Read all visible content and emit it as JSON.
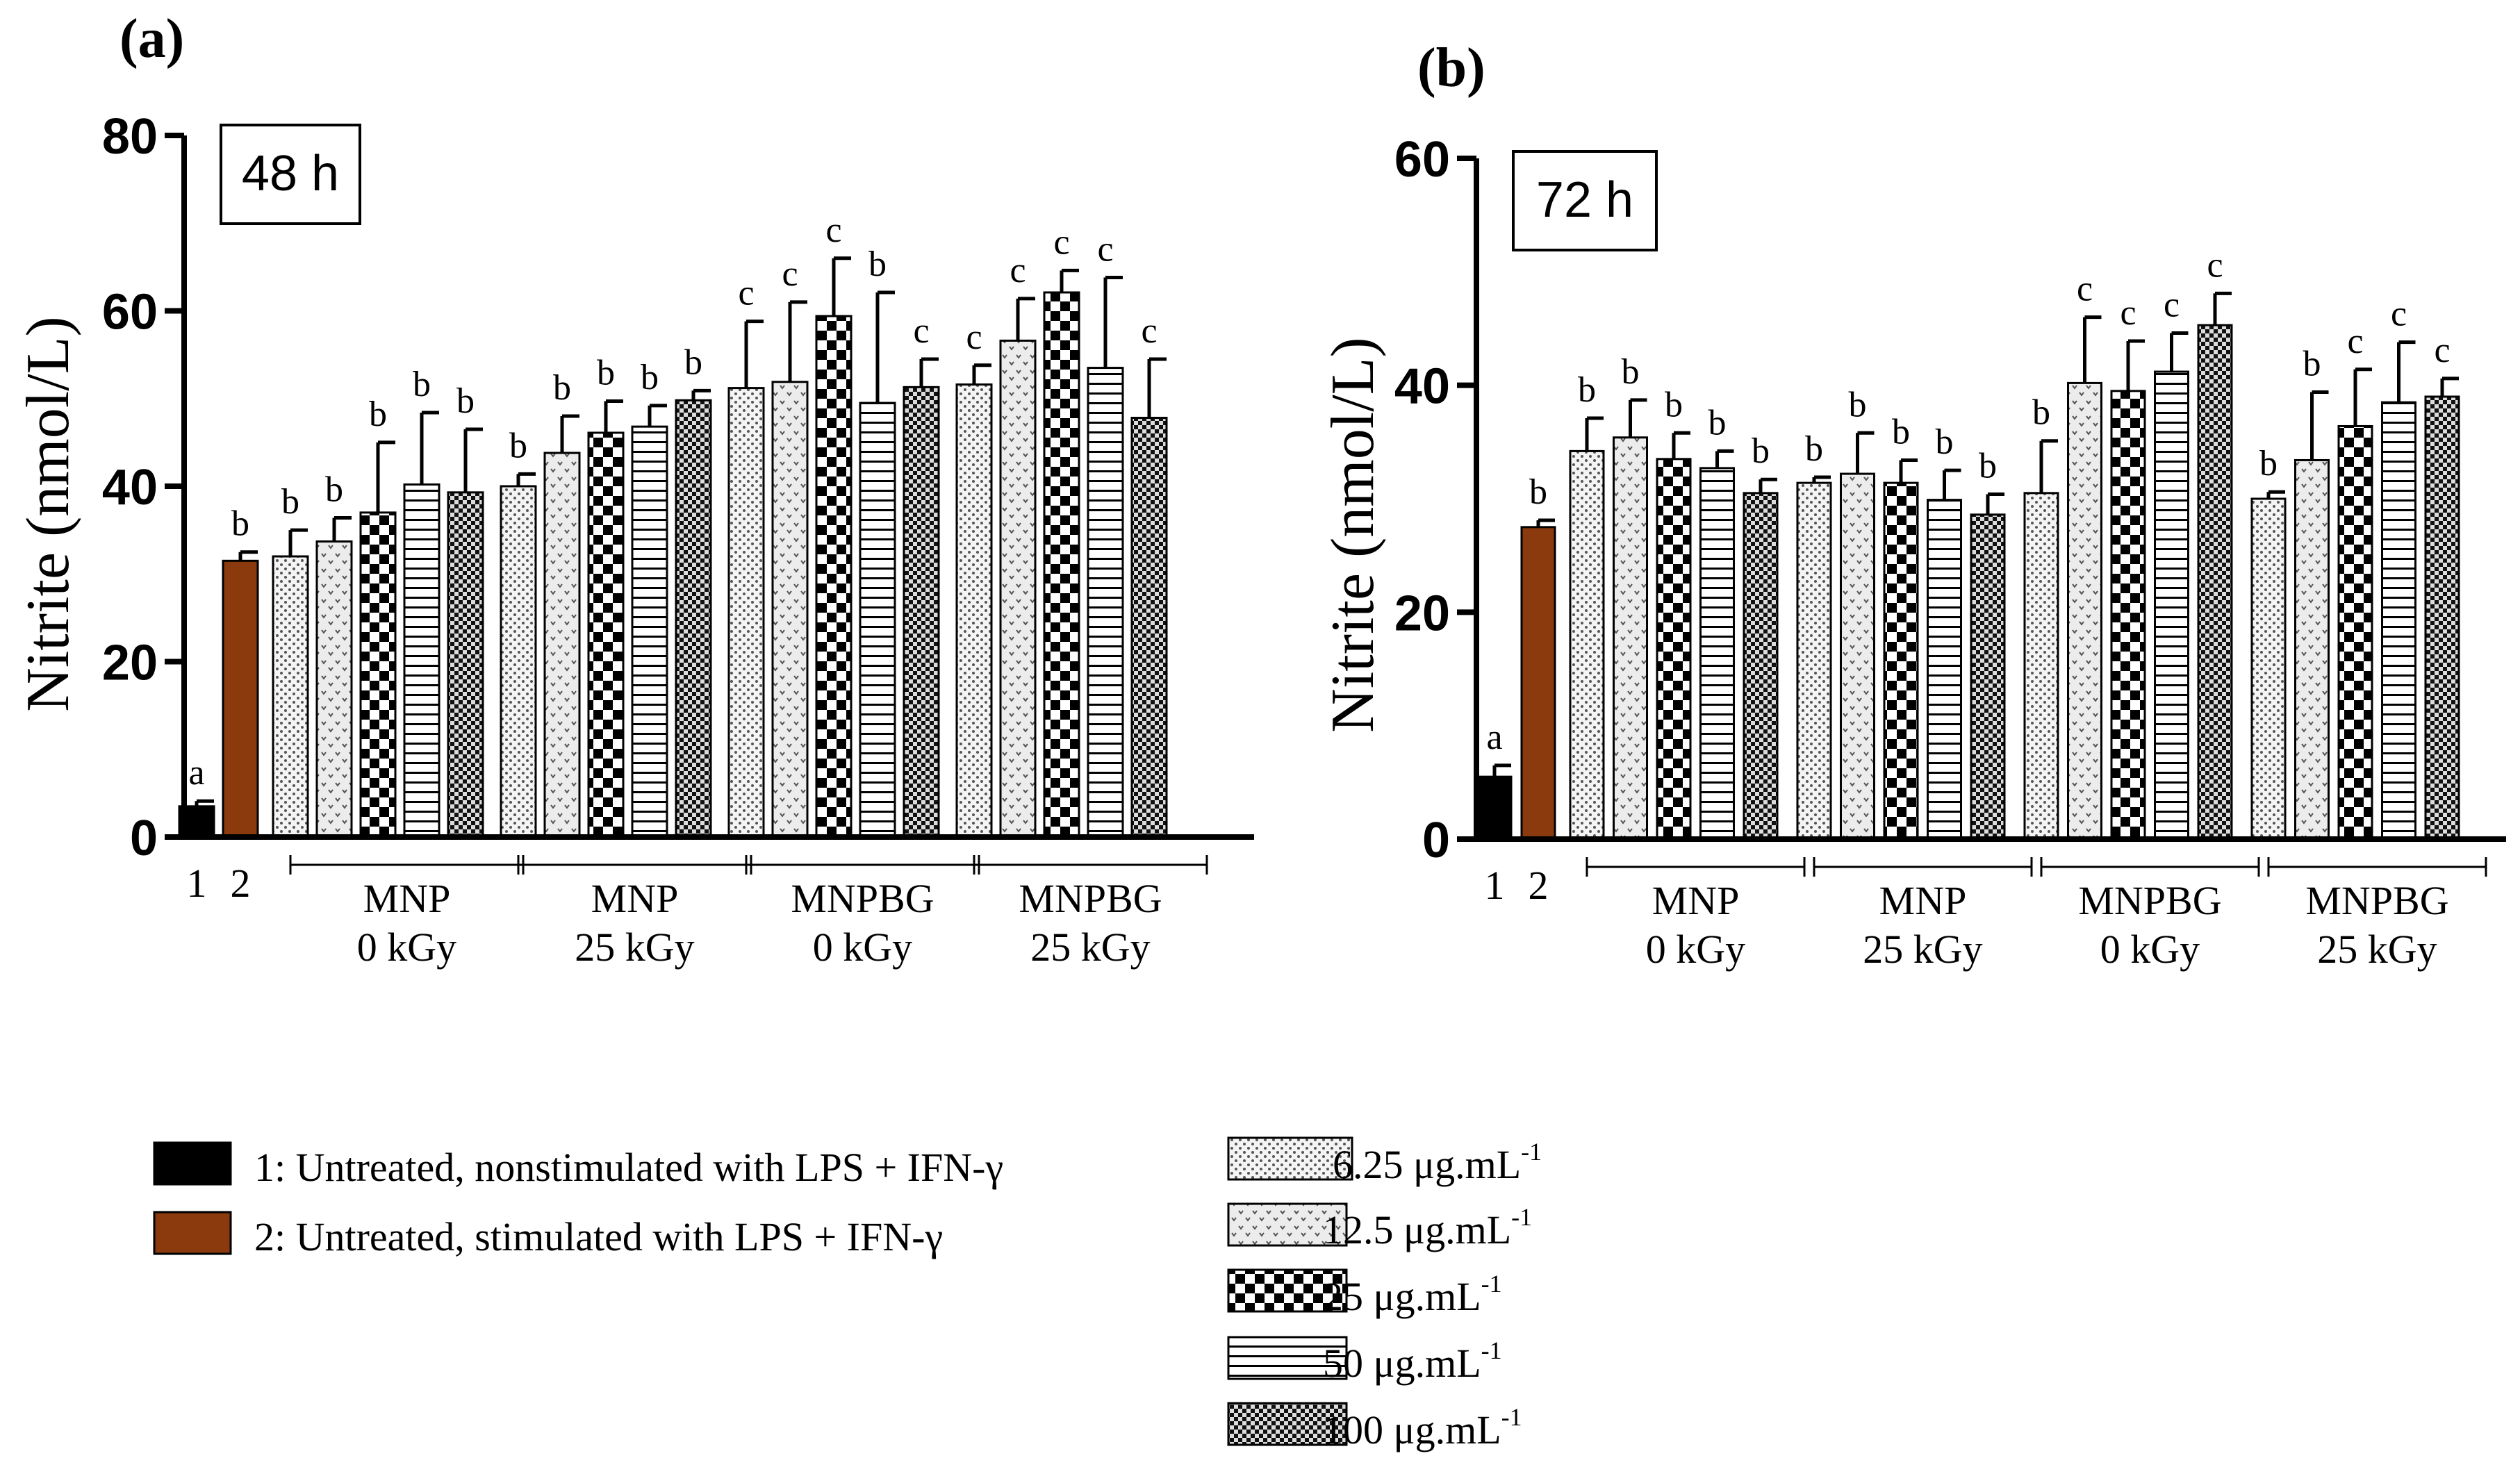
{
  "colors": {
    "untreated_nonstim": "#000000",
    "untreated_stim": "#8B3A0E",
    "axis": "#000000"
  },
  "chart_data": [
    {
      "type": "bar",
      "panel_label": "(a)",
      "time_label": "48 h",
      "ylabel": "Nitrite (nmol/L)",
      "ylim": [
        0,
        80
      ],
      "yticks": [
        0,
        20,
        40,
        60,
        80
      ],
      "controls": [
        {
          "category": "1",
          "value": 3.5,
          "error": 0.6,
          "letter": "a",
          "pattern": "solid-black"
        },
        {
          "category": "2",
          "value": 31.5,
          "error": 1.0,
          "letter": "b",
          "pattern": "solid-brown"
        }
      ],
      "groups": [
        {
          "line1": "MNP",
          "line2": "0 kGy",
          "values": [
            32,
            33.7,
            37,
            40.2,
            39.3
          ],
          "errors": [
            3,
            2.7,
            8,
            8.2,
            7.2
          ],
          "letters": [
            "b",
            "b",
            "b",
            "b",
            "b"
          ]
        },
        {
          "line1": "MNP",
          "line2": "25 kGy",
          "values": [
            40,
            43.8,
            46.1,
            46.8,
            49.8
          ],
          "errors": [
            1.4,
            4.2,
            3.6,
            2.4,
            1.1
          ],
          "letters": [
            "b",
            "b",
            "b",
            "b",
            "b"
          ]
        },
        {
          "line1": "MNPBG",
          "line2": "0 kGy",
          "values": [
            51.2,
            51.9,
            59.4,
            49.5,
            51.3
          ],
          "errors": [
            7.6,
            9.1,
            6.6,
            12.6,
            3.2
          ],
          "letters": [
            "c",
            "c",
            "c",
            "b",
            "c"
          ]
        },
        {
          "line1": "MNPBG",
          "line2": "25 kGy",
          "values": [
            51.6,
            56.6,
            62.1,
            53.5,
            47.8
          ],
          "errors": [
            2.2,
            4.8,
            2.5,
            10.3,
            6.7
          ],
          "letters": [
            "c",
            "c",
            "c",
            "c",
            "c"
          ]
        }
      ]
    },
    {
      "type": "bar",
      "panel_label": "(b)",
      "time_label": "72 h",
      "ylabel": "Nitrite (nmol/L)",
      "ylim": [
        0,
        60
      ],
      "yticks": [
        0,
        20,
        40,
        60
      ],
      "controls": [
        {
          "category": "1",
          "value": 5.5,
          "error": 1.0,
          "letter": "a",
          "pattern": "solid-black"
        },
        {
          "category": "2",
          "value": 27.5,
          "error": 0.6,
          "letter": "b",
          "pattern": "solid-brown"
        }
      ],
      "groups": [
        {
          "line1": "MNP",
          "line2": "0 kGy",
          "values": [
            34.2,
            35.4,
            33.5,
            32.7,
            30.5
          ],
          "errors": [
            2.9,
            3.3,
            2.3,
            1.5,
            1.2
          ],
          "letters": [
            "b",
            "b",
            "b",
            "b",
            "b"
          ]
        },
        {
          "line1": "MNP",
          "line2": "25 kGy",
          "values": [
            31.4,
            32.2,
            31.4,
            29.9,
            28.6
          ],
          "errors": [
            0.5,
            3.6,
            2,
            2.6,
            1.8
          ],
          "letters": [
            "b",
            "b",
            "b",
            "b",
            "b"
          ]
        },
        {
          "line1": "MNPBG",
          "line2": "0 kGy",
          "values": [
            30.5,
            40.2,
            39.5,
            41.2,
            45.3
          ],
          "errors": [
            4.6,
            5.8,
            4.4,
            3.4,
            2.8
          ],
          "letters": [
            "b",
            "c",
            "c",
            "c",
            "c"
          ]
        },
        {
          "line1": "MNPBG",
          "line2": "25 kGy",
          "values": [
            30,
            33.4,
            36.4,
            38.5,
            39
          ],
          "errors": [
            0.6,
            6,
            5,
            5.3,
            1.6
          ],
          "letters": [
            "b",
            "b",
            "c",
            "c",
            "c"
          ]
        }
      ]
    }
  ],
  "legend": {
    "controls": [
      {
        "pattern": "solid-black",
        "label": "1: Untreated, nonstimulated with LPS + IFN-γ"
      },
      {
        "pattern": "solid-brown",
        "label": "2: Untreated, stimulated with LPS + IFN-γ"
      }
    ],
    "concentrations": [
      {
        "pattern": "dots",
        "value": "6.25",
        "unit": "μg.mL",
        "exp": "-1"
      },
      {
        "pattern": "vdots",
        "value": "12.5",
        "unit": "μg.mL",
        "exp": "-1"
      },
      {
        "pattern": "checker",
        "value": "25",
        "unit": "μg.mL",
        "exp": "-1"
      },
      {
        "pattern": "hlines",
        "value": "50",
        "unit": "μg.mL",
        "exp": "-1"
      },
      {
        "pattern": "fine-checker",
        "value": "100",
        "unit": "μg.mL",
        "exp": "-1"
      }
    ]
  }
}
